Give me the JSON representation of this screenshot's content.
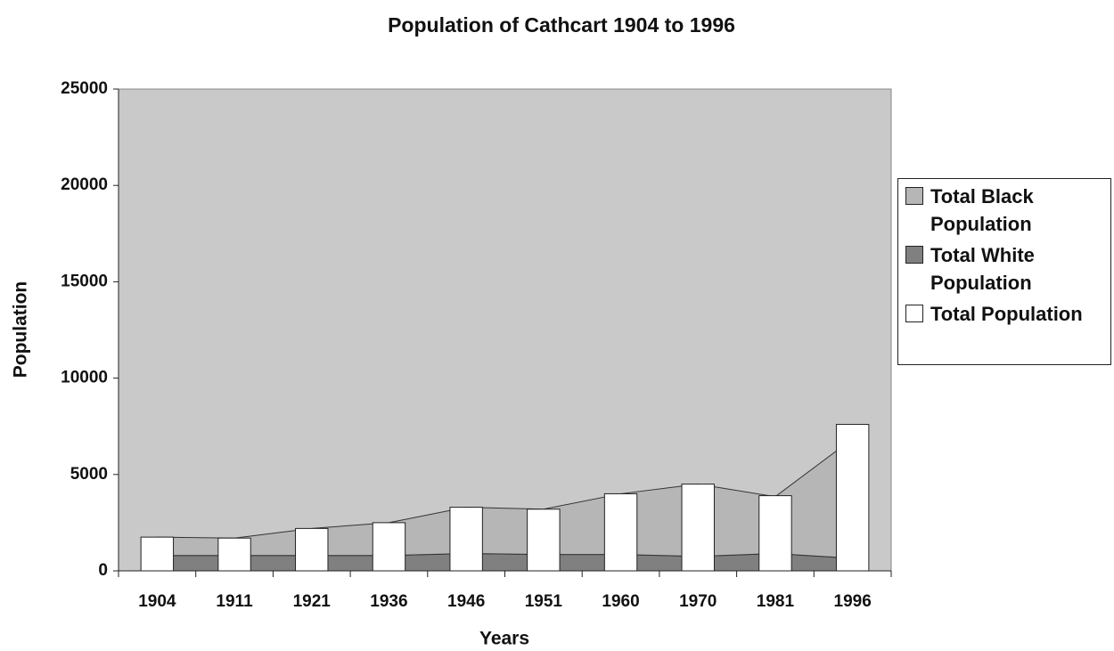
{
  "chart_data": {
    "type": "combo",
    "title": "Population of Cathcart 1904 to 1996",
    "x_label": "Years",
    "y_label": "Population",
    "categories": [
      "1904",
      "1911",
      "1921",
      "1936",
      "1946",
      "1951",
      "1960",
      "1970",
      "1981",
      "1996"
    ],
    "stacked": true,
    "series": [
      {
        "name": "Total Black Population",
        "type": "area",
        "color": "#b6b6b6",
        "values": [
          950,
          900,
          1400,
          1700,
          2400,
          2350,
          3150,
          3750,
          2950,
          6200
        ]
      },
      {
        "name": "Total White Population",
        "type": "area",
        "color": "#808080",
        "values": [
          800,
          800,
          800,
          800,
          900,
          850,
          850,
          750,
          900,
          650
        ]
      },
      {
        "name": "Total Population",
        "type": "bar",
        "color": "#ffffff",
        "values": [
          1750,
          1700,
          2200,
          2500,
          3300,
          3200,
          4000,
          4500,
          3900,
          7600
        ]
      }
    ],
    "ylim": [
      0,
      25000
    ],
    "yticks": [
      0,
      5000,
      10000,
      15000,
      20000,
      25000
    ],
    "plot_background": "#c9c9c9",
    "grid": false,
    "legend": "right"
  }
}
